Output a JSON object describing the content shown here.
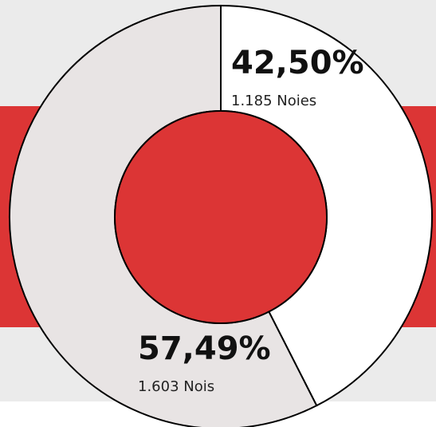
{
  "chart_data": {
    "type": "pie",
    "donut": true,
    "categories": [
      "1.185 Noies",
      "1.603 Nois"
    ],
    "values": [
      42.5,
      57.49
    ],
    "value_labels": [
      "42,50%",
      "57,49%"
    ],
    "colors": [
      "#ffffff",
      "#e8e4e4"
    ]
  }
}
